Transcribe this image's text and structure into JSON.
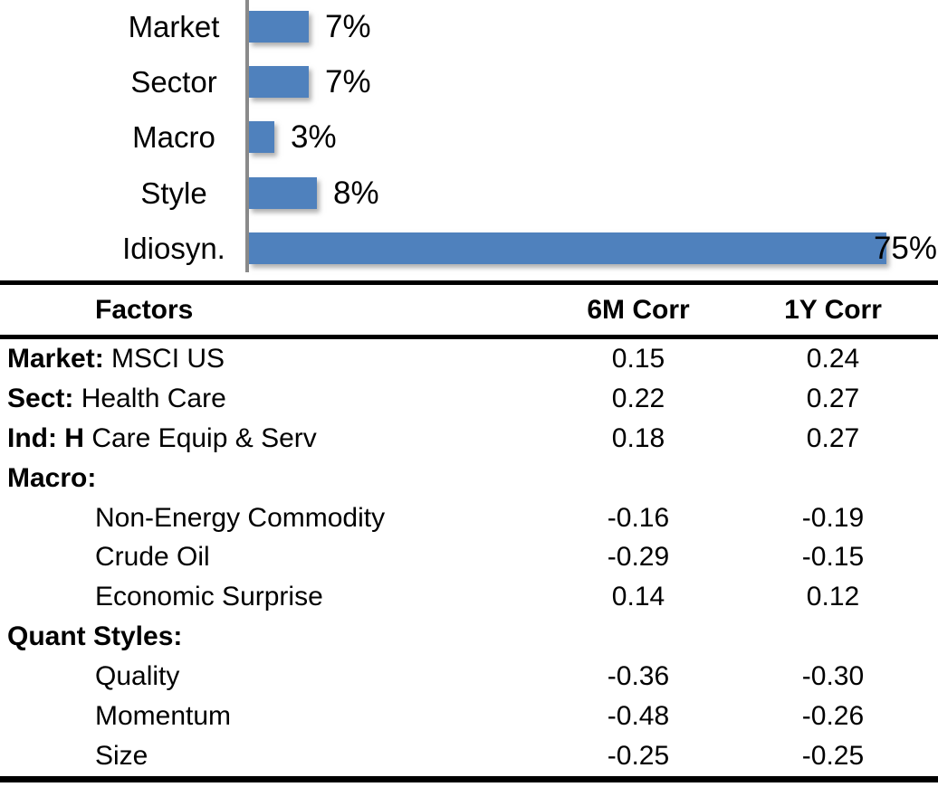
{
  "chart_data": {
    "type": "bar",
    "orientation": "horizontal",
    "title": "",
    "xlabel": "",
    "ylabel": "",
    "categories": [
      "Market",
      "Sector",
      "Macro",
      "Style",
      "Idiosyn."
    ],
    "values": [
      7,
      7,
      3,
      8,
      75
    ],
    "data_labels": [
      "7%",
      "7%",
      "3%",
      "8%",
      "75%"
    ],
    "xlim": [
      0,
      80
    ],
    "grid": false,
    "legend": false,
    "bar_color": "#4F81BD",
    "axis_line_color": "#8A8A8A",
    "label_color": "#000000"
  },
  "table": {
    "headers": {
      "factors": "Factors",
      "corr6m": "6M Corr",
      "corr1y": "1Y Corr"
    },
    "rows": [
      {
        "bold": "Market:",
        "rest": " MSCI US",
        "indent": false,
        "corr6m": "0.15",
        "corr1y": "0.24"
      },
      {
        "bold": "Sect:",
        "rest": " Health Care",
        "indent": false,
        "corr6m": "0.22",
        "corr1y": "0.27"
      },
      {
        "bold": "Ind: H",
        "rest": " Care Equip & Serv",
        "indent": false,
        "corr6m": "0.18",
        "corr1y": "0.27"
      },
      {
        "bold": "Macro:",
        "rest": "",
        "indent": false,
        "corr6m": "",
        "corr1y": ""
      },
      {
        "bold": "",
        "rest": "Non-Energy Commodity",
        "indent": true,
        "corr6m": "-0.16",
        "corr1y": "-0.19"
      },
      {
        "bold": "",
        "rest": "Crude Oil",
        "indent": true,
        "corr6m": "-0.29",
        "corr1y": "-0.15"
      },
      {
        "bold": "",
        "rest": "Economic Surprise",
        "indent": true,
        "corr6m": "0.14",
        "corr1y": "0.12"
      },
      {
        "bold": "Quant Styles:",
        "rest": "",
        "indent": false,
        "corr6m": "",
        "corr1y": ""
      },
      {
        "bold": "",
        "rest": "Quality",
        "indent": true,
        "corr6m": "-0.36",
        "corr1y": "-0.30"
      },
      {
        "bold": "",
        "rest": "Momentum",
        "indent": true,
        "corr6m": "-0.48",
        "corr1y": "-0.26"
      },
      {
        "bold": "",
        "rest": "Size",
        "indent": true,
        "corr6m": "-0.25",
        "corr1y": "-0.25"
      }
    ]
  }
}
